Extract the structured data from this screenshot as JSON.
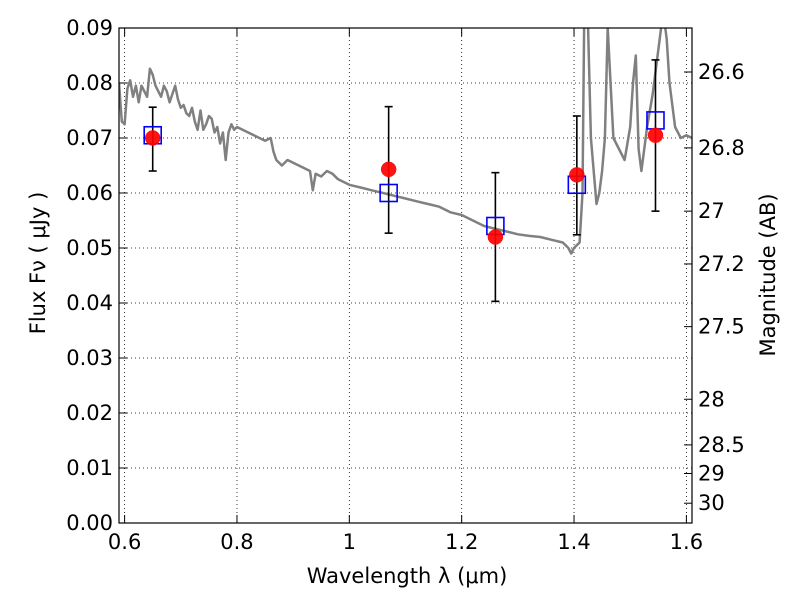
{
  "chart_data": {
    "type": "scatter",
    "title": "",
    "xlabel": "Wavelength  λ (μm)",
    "ylabel": "Flux  Fν  ( μJy )",
    "ylabel_right": "Magnitude (AB)",
    "xlim": [
      0.59,
      1.61
    ],
    "ylim": [
      0.0,
      0.09
    ],
    "grid": true,
    "x_ticks": [
      0.6,
      0.8,
      1.0,
      1.2,
      1.4,
      1.6
    ],
    "x_tick_labels": [
      "0.6",
      "0.8",
      "1",
      "1.2",
      "1.4",
      "1.6"
    ],
    "y_ticks": [
      0.0,
      0.01,
      0.02,
      0.03,
      0.04,
      0.05,
      0.06,
      0.07,
      0.08,
      0.09
    ],
    "y_tick_labels": [
      "0.00",
      "0.01",
      "0.02",
      "0.03",
      "0.04",
      "0.05",
      "0.06",
      "0.07",
      "0.08",
      "0.09"
    ],
    "right_ticks": [
      {
        "label": "26.6",
        "flux": 0.082
      },
      {
        "label": "26.8",
        "flux": 0.0682
      },
      {
        "label": "27",
        "flux": 0.0567
      },
      {
        "label": "27.2",
        "flux": 0.0471
      },
      {
        "label": "27.5",
        "flux": 0.0357
      },
      {
        "label": "28",
        "flux": 0.0225
      },
      {
        "label": "28.5",
        "flux": 0.0142
      },
      {
        "label": "29",
        "flux": 0.009
      },
      {
        "label": "30",
        "flux": 0.0036
      }
    ],
    "series": [
      {
        "kind": "line",
        "color": "#808080",
        "x": [
          0.59,
          0.595,
          0.6,
          0.605,
          0.61,
          0.615,
          0.62,
          0.625,
          0.63,
          0.635,
          0.64,
          0.645,
          0.65,
          0.655,
          0.66,
          0.665,
          0.67,
          0.675,
          0.68,
          0.685,
          0.69,
          0.695,
          0.7,
          0.705,
          0.71,
          0.715,
          0.72,
          0.725,
          0.73,
          0.735,
          0.74,
          0.745,
          0.75,
          0.755,
          0.76,
          0.765,
          0.77,
          0.775,
          0.78,
          0.785,
          0.79,
          0.795,
          0.8,
          0.81,
          0.82,
          0.83,
          0.84,
          0.85,
          0.86,
          0.865,
          0.87,
          0.88,
          0.89,
          0.9,
          0.91,
          0.92,
          0.93,
          0.935,
          0.94,
          0.95,
          0.96,
          0.97,
          0.98,
          0.99,
          1.0,
          1.02,
          1.04,
          1.06,
          1.08,
          1.1,
          1.12,
          1.14,
          1.16,
          1.18,
          1.2,
          1.22,
          1.24,
          1.26,
          1.28,
          1.3,
          1.32,
          1.34,
          1.36,
          1.38,
          1.39,
          1.395,
          1.4,
          1.41,
          1.415,
          1.418,
          1.42,
          1.425,
          1.43,
          1.44,
          1.445,
          1.45,
          1.455,
          1.46,
          1.47,
          1.48,
          1.49,
          1.5,
          1.505,
          1.51,
          1.515,
          1.52,
          1.53,
          1.54,
          1.55,
          1.555,
          1.56,
          1.565,
          1.57,
          1.58,
          1.59,
          1.6,
          1.61
        ],
        "y": [
          0.08,
          0.073,
          0.0725,
          0.079,
          0.0805,
          0.0775,
          0.0795,
          0.0765,
          0.0795,
          0.0785,
          0.0775,
          0.0826,
          0.0815,
          0.0795,
          0.0785,
          0.0775,
          0.0795,
          0.0785,
          0.0765,
          0.078,
          0.0795,
          0.077,
          0.0755,
          0.076,
          0.0745,
          0.074,
          0.0755,
          0.073,
          0.0715,
          0.075,
          0.0715,
          0.0725,
          0.074,
          0.0735,
          0.071,
          0.072,
          0.069,
          0.071,
          0.066,
          0.071,
          0.0725,
          0.0715,
          0.072,
          0.0715,
          0.071,
          0.0705,
          0.07,
          0.0695,
          0.07,
          0.0675,
          0.066,
          0.065,
          0.066,
          0.0655,
          0.065,
          0.0645,
          0.064,
          0.0605,
          0.0635,
          0.063,
          0.064,
          0.0635,
          0.0625,
          0.062,
          0.0615,
          0.061,
          0.0605,
          0.06,
          0.0595,
          0.059,
          0.0585,
          0.058,
          0.0575,
          0.0565,
          0.056,
          0.055,
          0.054,
          0.0535,
          0.053,
          0.0525,
          0.0522,
          0.052,
          0.0515,
          0.051,
          0.05,
          0.049,
          0.05,
          0.051,
          0.06,
          0.09,
          0.092,
          0.09,
          0.07,
          0.058,
          0.06,
          0.064,
          0.07,
          0.09,
          0.07,
          0.068,
          0.066,
          0.072,
          0.08,
          0.085,
          0.068,
          0.064,
          0.072,
          0.078,
          0.086,
          0.09,
          0.092,
          0.088,
          0.08,
          0.072,
          0.07,
          0.0705,
          0.07
        ]
      },
      {
        "kind": "open-square",
        "color": "#0000ff",
        "x": [
          0.65,
          1.07,
          1.26,
          1.405,
          1.545
        ],
        "y": [
          0.0705,
          0.06,
          0.054,
          0.0615,
          0.0732
        ]
      },
      {
        "kind": "filled-circle",
        "color": "#ff0000",
        "x": [
          0.65,
          1.07,
          1.26,
          1.405,
          1.545
        ],
        "y": [
          0.07,
          0.0643,
          0.052,
          0.0633,
          0.0705
        ],
        "yerr_low": [
          0.064,
          0.0527,
          0.0403,
          0.0524,
          0.0567
        ],
        "yerr_high": [
          0.0756,
          0.0757,
          0.0637,
          0.074,
          0.0842
        ]
      }
    ]
  }
}
